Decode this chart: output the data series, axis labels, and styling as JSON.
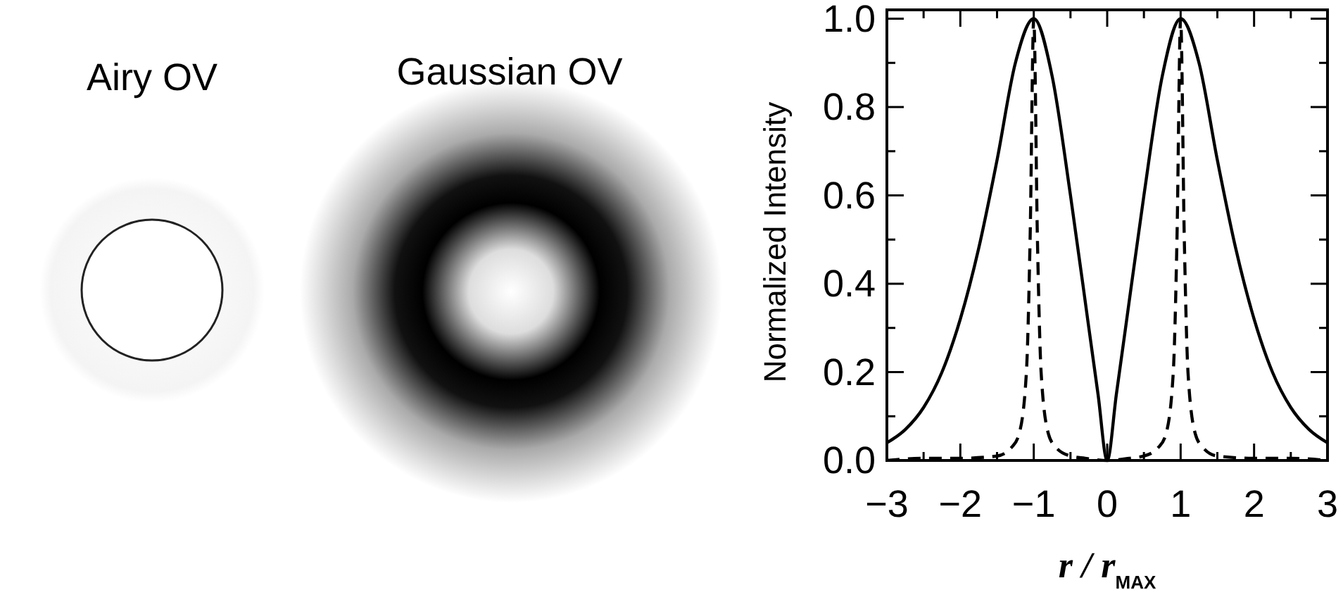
{
  "chart_data": {
    "type": "line",
    "xlabel": "r / r$_{MAX}$",
    "ylabel": "Normalized  Intensity",
    "annotations": [
      "Airy OV",
      "Gaussian OV"
    ],
    "xlim": [
      -3,
      3
    ],
    "ylim": [
      0,
      1.02
    ],
    "xticks": [
      {
        "value": -3,
        "label": "−3"
      },
      {
        "value": -2.5,
        "label": null
      },
      {
        "value": -2,
        "label": "−2"
      },
      {
        "value": -1.5,
        "label": null
      },
      {
        "value": -1,
        "label": "−1"
      },
      {
        "value": -0.5,
        "label": null
      },
      0,
      {
        "value": 0.5,
        "label": null
      },
      1,
      {
        "value": 1.5,
        "label": null
      },
      2,
      {
        "value": 2.5,
        "label": null
      },
      3
    ],
    "yticks": [
      {
        "value": 0,
        "label": "0.0"
      },
      {
        "value": 0.1,
        "label": null
      },
      {
        "value": 0.2,
        "label": "0.2"
      },
      {
        "value": 0.3,
        "label": null
      },
      {
        "value": 0.4,
        "label": "0.4"
      },
      {
        "value": 0.5,
        "label": null
      },
      {
        "value": 0.6,
        "label": "0.6"
      },
      {
        "value": 0.7,
        "label": null
      },
      {
        "value": 0.8,
        "label": "0.8"
      },
      {
        "value": 0.9,
        "label": null
      },
      {
        "value": 1,
        "label": "1.0"
      }
    ],
    "series": [
      {
        "color": "#000000",
        "line_style": "solid",
        "x": [
          -3,
          -2.75,
          -2.5,
          -2.25,
          -2,
          -1.75,
          -1.5,
          -1.25,
          -1,
          -0.75,
          -0.5,
          -0.25,
          -0.125,
          0,
          0.125,
          0.25,
          0.5,
          0.75,
          1,
          1.25,
          1.5,
          1.75,
          2,
          2.25,
          2.5,
          2.75,
          3
        ],
        "values": [
          0.04,
          0.07,
          0.12,
          0.2,
          0.32,
          0.48,
          0.68,
          0.9,
          1,
          0.87,
          0.6,
          0.3,
          0.15,
          0,
          0.15,
          0.3,
          0.6,
          0.87,
          1,
          0.9,
          0.68,
          0.48,
          0.32,
          0.2,
          0.12,
          0.07,
          0.04
        ]
      },
      {
        "color": "#000000",
        "line_style": "dashed",
        "x": [
          -3,
          -2.5,
          -2,
          -1.5,
          -1.3,
          -1.2,
          -1.1,
          -1.05,
          -1,
          -0.95,
          -0.9,
          -0.8,
          -0.7,
          -0.5,
          -0.3,
          0,
          0.3,
          0.5,
          0.7,
          0.8,
          0.9,
          0.95,
          1,
          1.05,
          1.1,
          1.2,
          1.3,
          1.5,
          2,
          2.5,
          3
        ],
        "values": [
          0,
          0.005,
          0.005,
          0.01,
          0.03,
          0.06,
          0.2,
          0.5,
          1,
          0.5,
          0.2,
          0.06,
          0.03,
          0.01,
          0.005,
          0,
          0.005,
          0.01,
          0.03,
          0.06,
          0.2,
          0.5,
          1,
          0.5,
          0.2,
          0.06,
          0.03,
          0.01,
          0.005,
          0.005,
          0
        ]
      }
    ]
  }
}
